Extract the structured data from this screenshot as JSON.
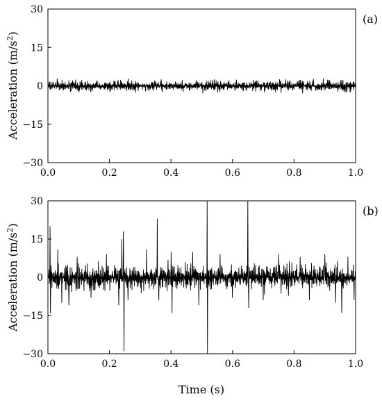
{
  "chart_data": [
    {
      "type": "line",
      "panel_label": "(a)",
      "ylabel_main": "Acceleration (m/s",
      "ylabel_sup": "2",
      "ylabel_close": ")",
      "xlim": [
        0.0,
        1.0
      ],
      "ylim": [
        -30,
        30
      ],
      "xticks": [
        0.0,
        0.2,
        0.4,
        0.6,
        0.8,
        1.0
      ],
      "xtick_labels": [
        "0.0",
        "0.2",
        "0.4",
        "0.6",
        "0.8",
        "1.0"
      ],
      "yticks": [
        30,
        15,
        0,
        -15,
        -30
      ],
      "ytick_labels": [
        "30",
        "15",
        "0",
        "−15",
        "−30"
      ],
      "series": [
        {
          "color": "#000000",
          "signal": {
            "kind": "noise",
            "n_points": 1000,
            "amplitude": 1.2,
            "peak_max": 2.8,
            "peak_min": -3.0,
            "seed": 11
          },
          "spikes": []
        }
      ]
    },
    {
      "type": "line",
      "panel_label": "(b)",
      "ylabel_main": "Acceleration (m/s",
      "ylabel_sup": "2",
      "ylabel_close": ")",
      "xlabel": "Time (s)",
      "xlim": [
        0.0,
        1.0
      ],
      "ylim": [
        -30,
        30
      ],
      "xticks": [
        0.0,
        0.2,
        0.4,
        0.6,
        0.8,
        1.0
      ],
      "xtick_labels": [
        "0.0",
        "0.2",
        "0.4",
        "0.6",
        "0.8",
        "1.0"
      ],
      "yticks": [
        30,
        15,
        0,
        -15,
        -30
      ],
      "ytick_labels": [
        "30",
        "15",
        "0",
        "−15",
        "−30"
      ],
      "series": [
        {
          "color": "#000000",
          "signal": {
            "kind": "noise",
            "n_points": 1000,
            "amplitude": 2.8,
            "peak_max": 8,
            "peak_min": -8,
            "seed": 29
          },
          "spikes": [
            {
              "t": 0.007,
              "v": 20
            },
            {
              "t": 0.008,
              "v": -14
            },
            {
              "t": 0.032,
              "v": 11
            },
            {
              "t": 0.045,
              "v": -10
            },
            {
              "t": 0.068,
              "v": -11
            },
            {
              "t": 0.095,
              "v": 8
            },
            {
              "t": 0.14,
              "v": -8
            },
            {
              "t": 0.19,
              "v": 9
            },
            {
              "t": 0.23,
              "v": -11
            },
            {
              "t": 0.24,
              "v": 15
            },
            {
              "t": 0.245,
              "v": 18
            },
            {
              "t": 0.247,
              "v": -29
            },
            {
              "t": 0.26,
              "v": -9
            },
            {
              "t": 0.32,
              "v": 11
            },
            {
              "t": 0.355,
              "v": 23
            },
            {
              "t": 0.36,
              "v": -9
            },
            {
              "t": 0.4,
              "v": 10
            },
            {
              "t": 0.403,
              "v": -14
            },
            {
              "t": 0.47,
              "v": 10
            },
            {
              "t": 0.49,
              "v": -11
            },
            {
              "t": 0.518,
              "v": 30
            },
            {
              "t": 0.519,
              "v": -30
            },
            {
              "t": 0.56,
              "v": 9
            },
            {
              "t": 0.6,
              "v": -8
            },
            {
              "t": 0.65,
              "v": 30
            },
            {
              "t": 0.653,
              "v": -12
            },
            {
              "t": 0.7,
              "v": -9
            },
            {
              "t": 0.75,
              "v": 9
            },
            {
              "t": 0.82,
              "v": 8
            },
            {
              "t": 0.85,
              "v": -9
            },
            {
              "t": 0.9,
              "v": 9
            },
            {
              "t": 0.935,
              "v": -10
            },
            {
              "t": 0.955,
              "v": -14
            },
            {
              "t": 0.975,
              "v": 8
            },
            {
              "t": 0.995,
              "v": -9
            }
          ]
        }
      ]
    }
  ]
}
